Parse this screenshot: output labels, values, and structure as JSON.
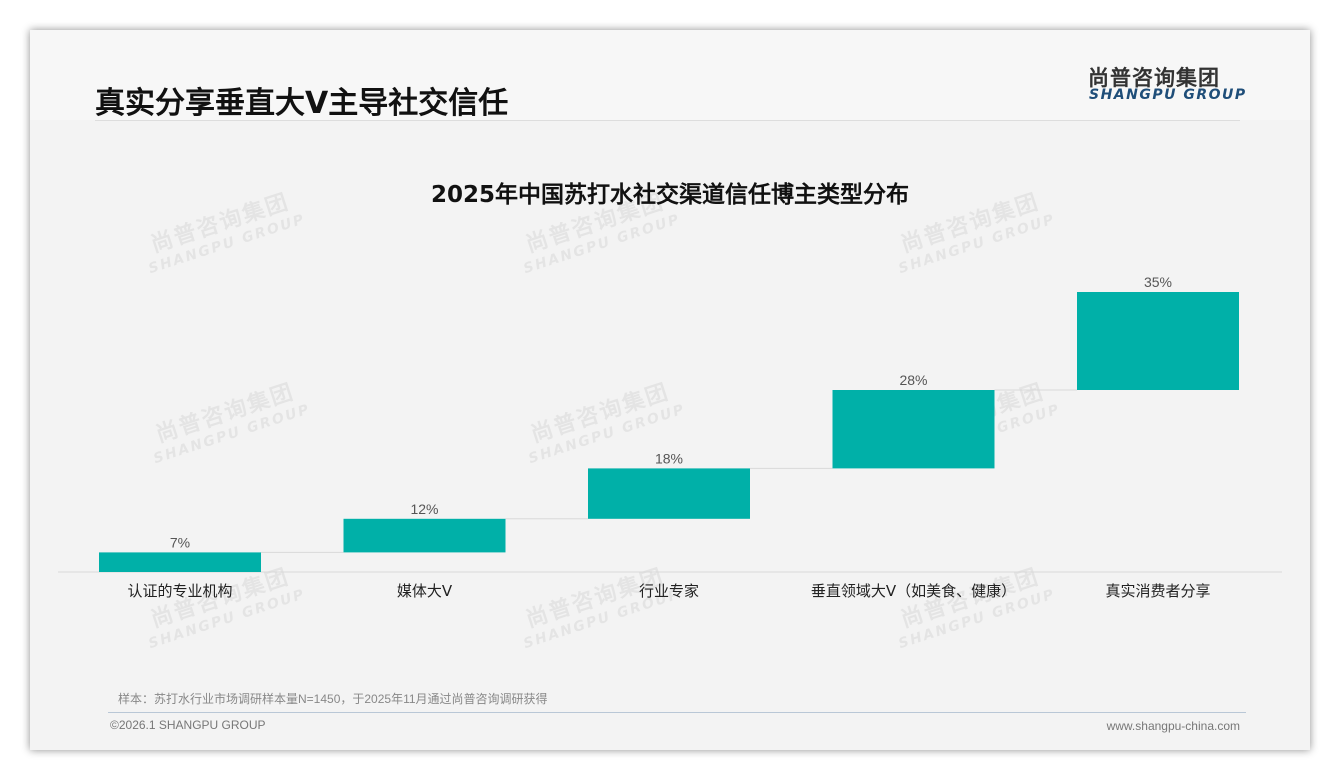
{
  "header": {
    "title": "真实分享垂直大V主导社交信任",
    "logo_cn": "尚普咨询集团",
    "logo_en": "SHANGPU GROUP"
  },
  "watermark": {
    "cn": "尚普咨询集团",
    "en": "SHANGPU GROUP"
  },
  "chart_data": {
    "type": "bar",
    "subtype": "waterfall",
    "title": "2025年中国苏打水社交渠道信任博主类型分布",
    "categories": [
      "认证的专业机构",
      "媒体大V",
      "行业专家",
      "垂直领域大V（如美食、健康）",
      "真实消费者分享"
    ],
    "values": [
      7,
      12,
      18,
      28,
      35
    ],
    "labels": [
      "7%",
      "12%",
      "18%",
      "28%",
      "35%"
    ],
    "unit": "%",
    "ylim": [
      0,
      100
    ],
    "color": "#00b0a8",
    "grid": false,
    "legend": "none"
  },
  "footer": {
    "note": "样本：苏打水行业市场调研样本量N=1450，于2025年11月通过尚普咨询调研获得",
    "copyright": "©2026.1 SHANGPU GROUP",
    "url": "www.shangpu-china.com"
  }
}
